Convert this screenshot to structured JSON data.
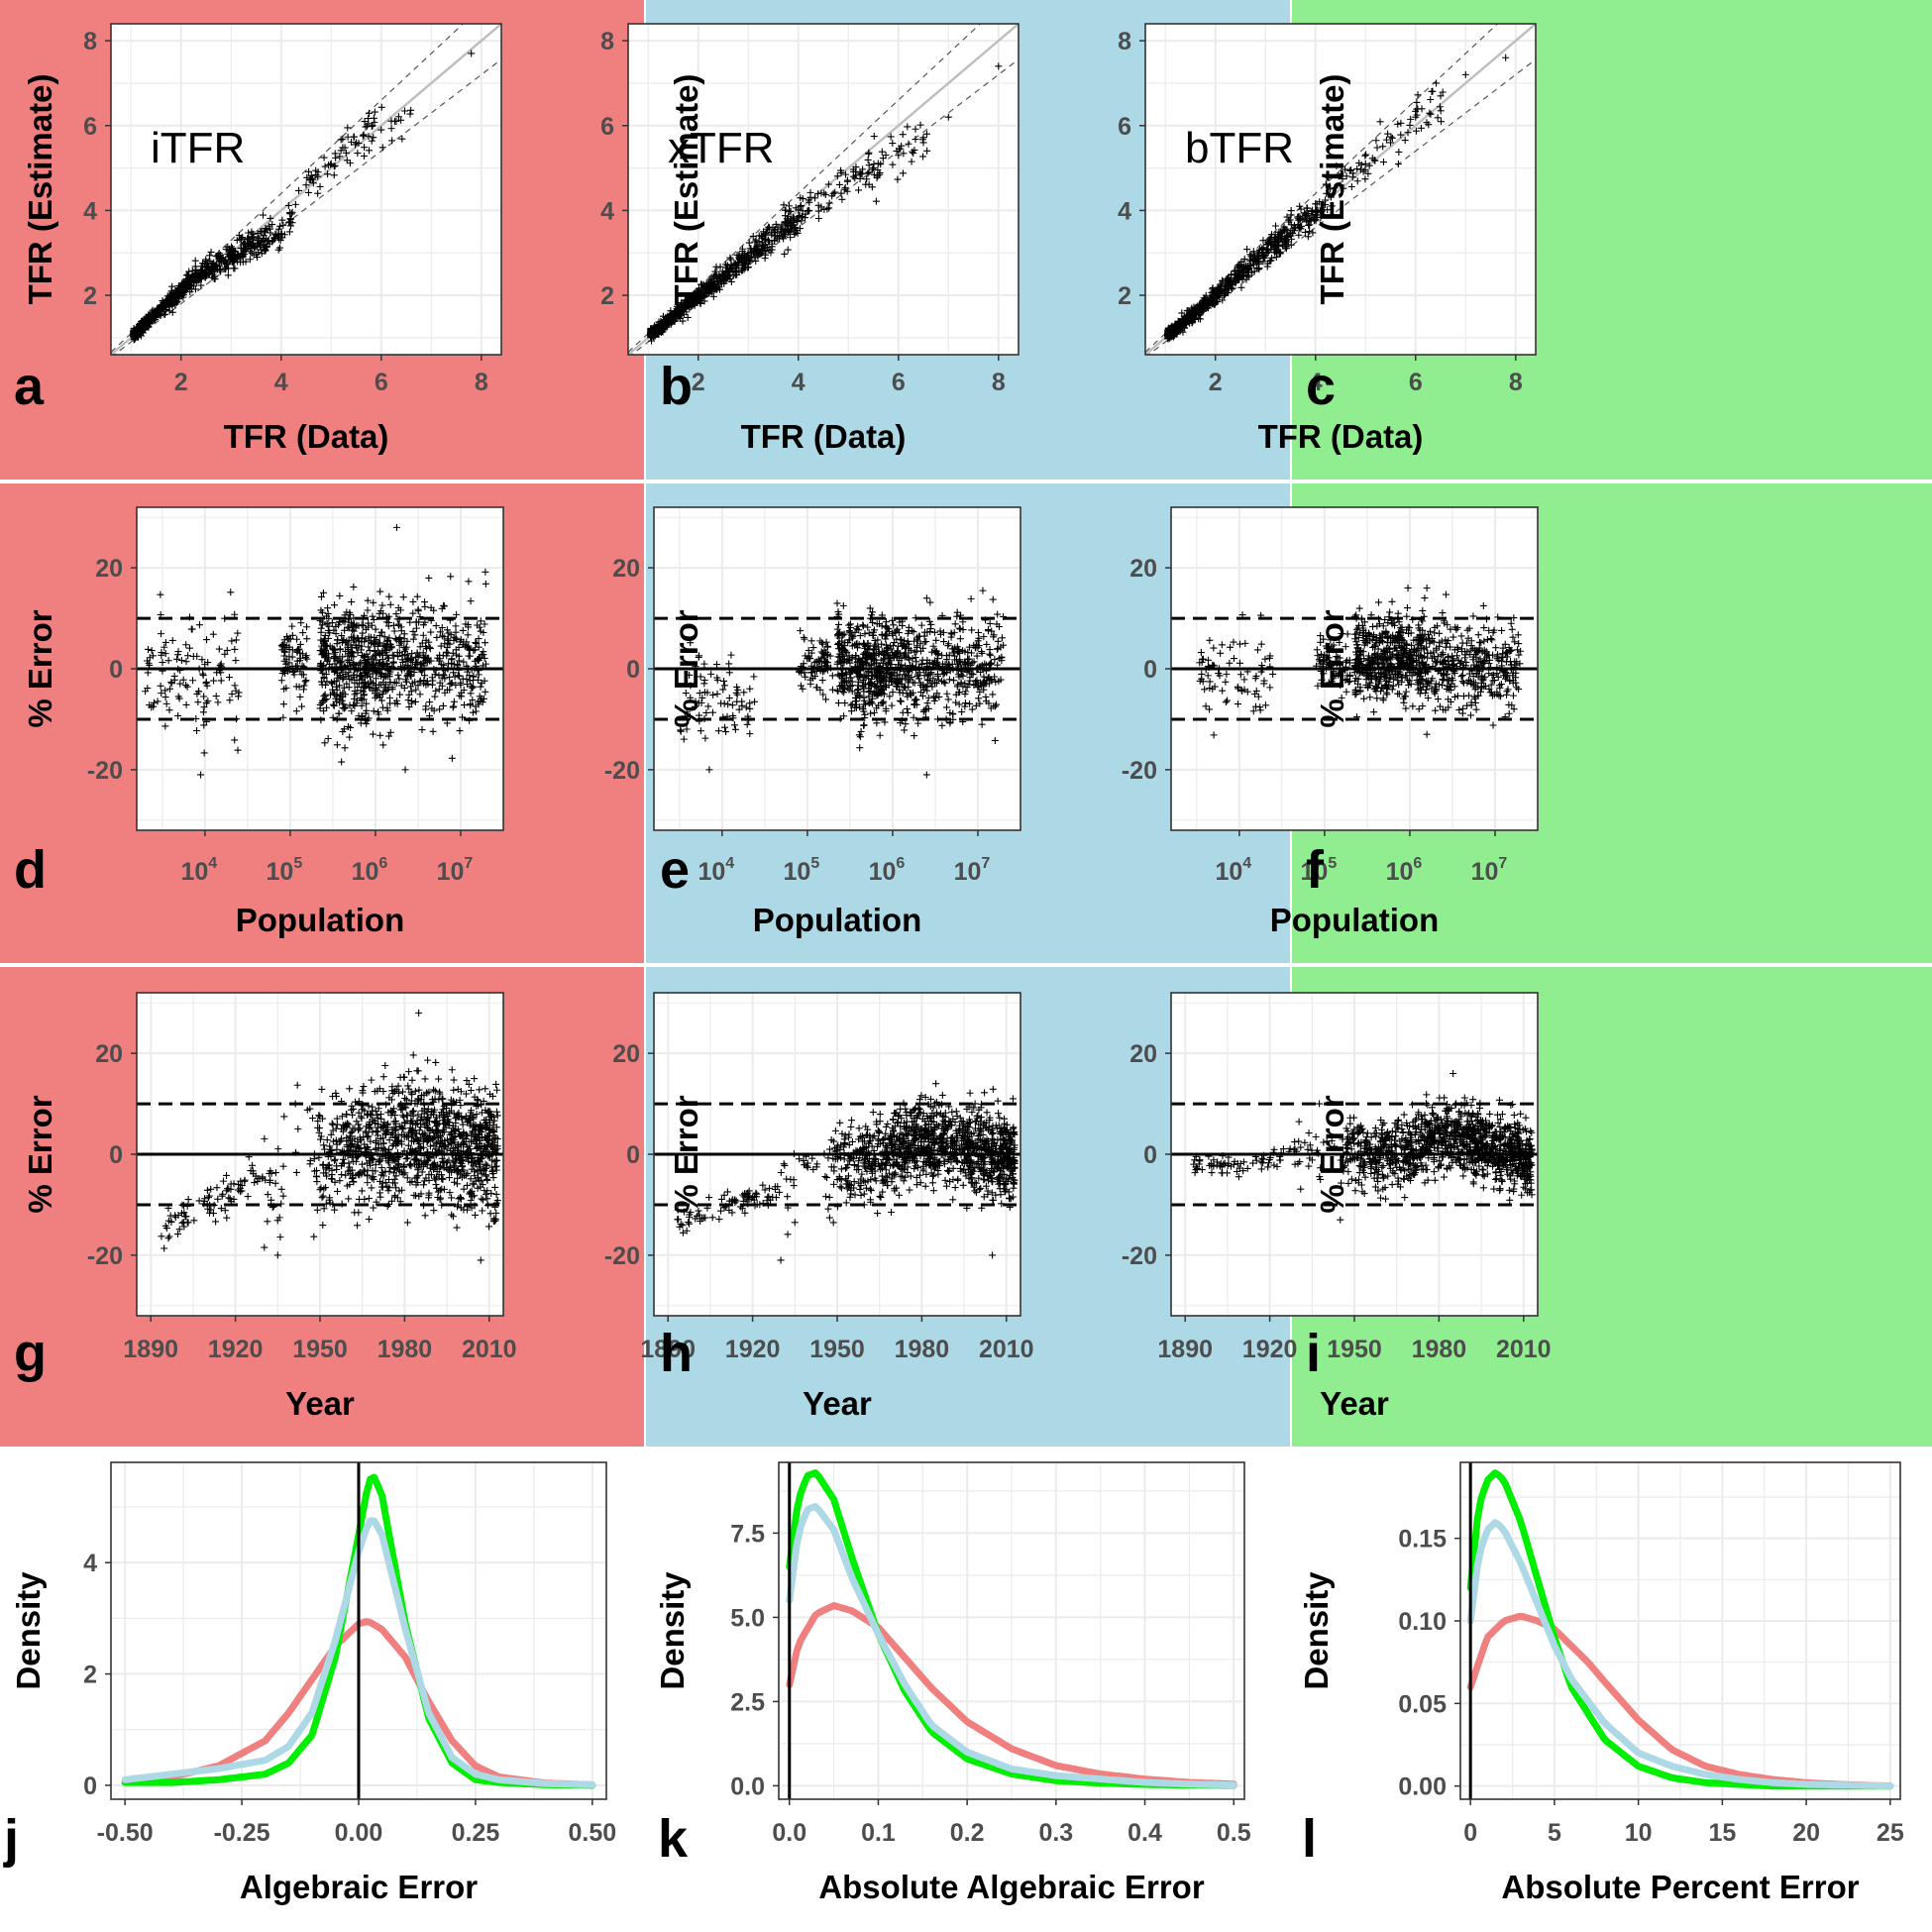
{
  "colors": {
    "iTFR": "#f08080",
    "xTFR": "#add8e6",
    "bTFR": "#90ee90",
    "green_line": "#00ee00",
    "grid": "#ebebeb",
    "points": "#000000"
  },
  "row1": {
    "xlabel": "TFR (Data)",
    "ylabel": "TFR (Estimate)",
    "xticks": [
      "2",
      "4",
      "6",
      "8"
    ],
    "yticks": [
      "2",
      "4",
      "6",
      "8"
    ],
    "panels": [
      {
        "tag": "a",
        "method": "iTFR"
      },
      {
        "tag": "b",
        "method": "xTFR"
      },
      {
        "tag": "c",
        "method": "bTFR"
      }
    ]
  },
  "row2": {
    "xlabel": "Population",
    "ylabel": "% Error",
    "xtick_base": "10",
    "xtick_exponents": [
      "4",
      "5",
      "6",
      "7"
    ],
    "yticks": [
      "-20",
      "0",
      "20"
    ],
    "panels": [
      {
        "tag": "d"
      },
      {
        "tag": "e"
      },
      {
        "tag": "f"
      }
    ]
  },
  "row3": {
    "xlabel": "Year",
    "ylabel": "% Error",
    "xticks": [
      "1890",
      "1920",
      "1950",
      "1980",
      "2010"
    ],
    "yticks": [
      "-20",
      "0",
      "20"
    ],
    "panels": [
      {
        "tag": "g"
      },
      {
        "tag": "h"
      },
      {
        "tag": "i"
      }
    ]
  },
  "row4": {
    "ylabel": "Density",
    "panels": [
      {
        "tag": "j",
        "xlabel": "Algebraic Error",
        "xticks": [
          "-0.50",
          "-0.25",
          "0.00",
          "0.25",
          "0.50"
        ],
        "yticks": [
          "0",
          "2",
          "4"
        ]
      },
      {
        "tag": "k",
        "xlabel": "Absolute Algebraic Error",
        "xticks": [
          "0.0",
          "0.1",
          "0.2",
          "0.3",
          "0.4",
          "0.5"
        ],
        "yticks": [
          "0.0",
          "2.5",
          "5.0",
          "7.5"
        ]
      },
      {
        "tag": "l",
        "xlabel": "Absolute Percent Error",
        "xticks": [
          "0",
          "5",
          "10",
          "15",
          "20",
          "25"
        ],
        "yticks": [
          "0.00",
          "0.05",
          "0.10",
          "0.15"
        ]
      }
    ]
  },
  "chart_data": [
    {
      "type": "scatter",
      "panel": "a",
      "method": "iTFR",
      "xlabel": "TFR (Data)",
      "ylabel": "TFR (Estimate)",
      "xlim": [
        0.6,
        8.4
      ],
      "ylim": [
        0.6,
        8.4
      ],
      "reference_lines": [
        "y = x",
        "y = 1.1x",
        "y = 0.9x"
      ],
      "points": [
        [
          1.1,
          1.1
        ],
        [
          1.3,
          1.35
        ],
        [
          1.5,
          1.55
        ],
        [
          1.7,
          1.8
        ],
        [
          1.9,
          2.0
        ],
        [
          2.1,
          2.25
        ],
        [
          2.3,
          2.45
        ],
        [
          2.5,
          2.55
        ],
        [
          2.7,
          2.7
        ],
        [
          3.0,
          2.9
        ],
        [
          3.3,
          3.1
        ],
        [
          3.6,
          3.25
        ],
        [
          4.0,
          3.45
        ],
        [
          4.5,
          4.6
        ],
        [
          5.0,
          5.1
        ],
        [
          5.5,
          5.6
        ],
        [
          6.0,
          5.9
        ],
        [
          6.3,
          6.1
        ],
        [
          7.8,
          7.7
        ]
      ]
    },
    {
      "type": "scatter",
      "panel": "b",
      "method": "xTFR",
      "xlabel": "TFR (Data)",
      "ylabel": "TFR (Estimate)",
      "xlim": [
        0.6,
        8.4
      ],
      "ylim": [
        0.6,
        8.4
      ],
      "reference_lines": [
        "y = x",
        "y = 1.1x",
        "y = 0.9x"
      ],
      "points": [
        [
          1.1,
          1.1
        ],
        [
          1.3,
          1.3
        ],
        [
          1.5,
          1.5
        ],
        [
          1.7,
          1.7
        ],
        [
          2.0,
          2.0
        ],
        [
          2.3,
          2.25
        ],
        [
          2.6,
          2.55
        ],
        [
          3.0,
          2.9
        ],
        [
          3.4,
          3.3
        ],
        [
          3.8,
          3.65
        ],
        [
          4.2,
          4.0
        ],
        [
          4.7,
          4.4
        ],
        [
          5.1,
          4.8
        ],
        [
          5.5,
          5.0
        ],
        [
          6.0,
          5.3
        ],
        [
          6.5,
          5.6
        ],
        [
          7.0,
          6.2
        ],
        [
          8.0,
          7.4
        ]
      ]
    },
    {
      "type": "scatter",
      "panel": "c",
      "method": "bTFR",
      "xlabel": "TFR (Data)",
      "ylabel": "TFR (Estimate)",
      "xlim": [
        0.6,
        8.4
      ],
      "ylim": [
        0.6,
        8.4
      ],
      "reference_lines": [
        "y = x",
        "y = 1.1x",
        "y = 0.9x"
      ],
      "points": [
        [
          1.1,
          1.1
        ],
        [
          1.3,
          1.3
        ],
        [
          1.5,
          1.5
        ],
        [
          1.8,
          1.8
        ],
        [
          2.1,
          2.1
        ],
        [
          2.4,
          2.4
        ],
        [
          2.8,
          2.8
        ],
        [
          3.2,
          3.2
        ],
        [
          3.6,
          3.6
        ],
        [
          4.0,
          4.0
        ],
        [
          4.5,
          4.6
        ],
        [
          5.0,
          5.1
        ],
        [
          5.5,
          5.6
        ],
        [
          6.0,
          6.2
        ],
        [
          6.5,
          6.7
        ],
        [
          7.0,
          7.2
        ],
        [
          7.8,
          7.6
        ]
      ]
    },
    {
      "type": "scatter",
      "panel": "d",
      "method": "iTFR",
      "xlabel": "Population",
      "ylabel": "% Error",
      "xscale": "log10",
      "xlim_log10": [
        3.2,
        7.5
      ],
      "ylim": [
        -32,
        32
      ],
      "reference_lines": [
        "y = 0",
        "y = 10",
        "y = -10"
      ],
      "clusters": [
        {
          "log10_pop": [
            3.3,
            4.4
          ],
          "error_mean": -2,
          "error_sd": 6,
          "n": 60
        },
        {
          "log10_pop": [
            4.9,
            5.2
          ],
          "error_mean": 1,
          "error_sd": 4,
          "n": 40
        },
        {
          "log10_pop": [
            5.35,
            6.2
          ],
          "error_mean": 1,
          "error_sd": 6,
          "n": 260
        },
        {
          "log10_pop": [
            6.2,
            7.3
          ],
          "error_mean": 1,
          "error_sd": 6,
          "n": 180
        }
      ],
      "extremes": [
        [
          6.25,
          28
        ],
        [
          3.95,
          -21
        ],
        [
          6.35,
          -20
        ]
      ]
    },
    {
      "type": "scatter",
      "panel": "e",
      "method": "xTFR",
      "xlabel": "Population",
      "ylabel": "% Error",
      "xscale": "log10",
      "xlim_log10": [
        3.2,
        7.5
      ],
      "ylim": [
        -32,
        32
      ],
      "reference_lines": [
        "y = 0",
        "y = 10",
        "y = -10"
      ],
      "clusters": [
        {
          "log10_pop": [
            3.5,
            4.4
          ],
          "error_mean": -6,
          "error_sd": 5,
          "n": 40
        },
        {
          "log10_pop": [
            4.9,
            5.3
          ],
          "error_mean": 1,
          "error_sd": 3,
          "n": 40
        },
        {
          "log10_pop": [
            5.35,
            6.2
          ],
          "error_mean": 0,
          "error_sd": 5,
          "n": 260
        },
        {
          "log10_pop": [
            6.2,
            7.3
          ],
          "error_mean": 0,
          "error_sd": 5,
          "n": 180
        }
      ],
      "extremes": [
        [
          6.4,
          14
        ],
        [
          3.85,
          -20
        ],
        [
          6.4,
          -21
        ]
      ]
    },
    {
      "type": "scatter",
      "panel": "f",
      "method": "bTFR",
      "xlabel": "Population",
      "ylabel": "% Error",
      "xscale": "log10",
      "xlim_log10": [
        3.2,
        7.5
      ],
      "ylim": [
        -32,
        32
      ],
      "reference_lines": [
        "y = 0",
        "y = 10",
        "y = -10"
      ],
      "clusters": [
        {
          "log10_pop": [
            3.5,
            4.4
          ],
          "error_mean": -1,
          "error_sd": 4,
          "n": 40
        },
        {
          "log10_pop": [
            4.9,
            5.3
          ],
          "error_mean": 1,
          "error_sd": 3,
          "n": 40
        },
        {
          "log10_pop": [
            5.35,
            6.2
          ],
          "error_mean": 2,
          "error_sd": 4,
          "n": 260
        },
        {
          "log10_pop": [
            6.2,
            7.3
          ],
          "error_mean": 1,
          "error_sd": 4,
          "n": 180
        }
      ],
      "extremes": [
        [
          6.2,
          16
        ],
        [
          6.2,
          -13
        ]
      ]
    },
    {
      "type": "scatter",
      "panel": "g",
      "method": "iTFR",
      "xlabel": "Year",
      "ylabel": "% Error",
      "xlim": [
        1885,
        2015
      ],
      "ylim": [
        -32,
        32
      ],
      "reference_lines": [
        "y = 0",
        "y = 10",
        "y = -10"
      ],
      "trend": [
        [
          1895,
          -15
        ],
        [
          1910,
          -10
        ],
        [
          1925,
          -6
        ],
        [
          1940,
          -3
        ],
        [
          1955,
          0
        ],
        [
          1970,
          2
        ],
        [
          1980,
          4
        ],
        [
          1990,
          3
        ],
        [
          2000,
          1
        ],
        [
          2013,
          0
        ]
      ],
      "error_sd": 6,
      "extremes": [
        [
          1985,
          28
        ],
        [
          2007,
          -21
        ],
        [
          1935,
          -20
        ]
      ]
    },
    {
      "type": "scatter",
      "panel": "h",
      "method": "xTFR",
      "xlabel": "Year",
      "ylabel": "% Error",
      "xlim": [
        1885,
        2015
      ],
      "ylim": [
        -32,
        32
      ],
      "reference_lines": [
        "y = 0",
        "y = 10",
        "y = -10"
      ],
      "trend": [
        [
          1895,
          -14
        ],
        [
          1910,
          -10
        ],
        [
          1925,
          -8
        ],
        [
          1940,
          -5
        ],
        [
          1955,
          -2
        ],
        [
          1970,
          1
        ],
        [
          1980,
          3
        ],
        [
          1990,
          2
        ],
        [
          2000,
          1
        ],
        [
          2013,
          -1
        ]
      ],
      "error_sd": 4,
      "extremes": [
        [
          1985,
          14
        ],
        [
          2005,
          -20
        ],
        [
          1930,
          -21
        ]
      ]
    },
    {
      "type": "scatter",
      "panel": "i",
      "method": "bTFR",
      "xlabel": "Year",
      "ylabel": "% Error",
      "xlim": [
        1885,
        2015
      ],
      "ylim": [
        -32,
        32
      ],
      "reference_lines": [
        "y = 0",
        "y = 10",
        "y = -10"
      ],
      "trend": [
        [
          1895,
          -2
        ],
        [
          1910,
          -3
        ],
        [
          1925,
          0
        ],
        [
          1940,
          0
        ],
        [
          1955,
          0
        ],
        [
          1970,
          1
        ],
        [
          1980,
          4
        ],
        [
          1990,
          3
        ],
        [
          2000,
          1
        ],
        [
          2013,
          -1
        ]
      ],
      "error_sd": 3.5,
      "extremes": [
        [
          1985,
          16
        ],
        [
          1945,
          -13
        ]
      ]
    },
    {
      "type": "line",
      "panel": "j",
      "xlabel": "Algebraic Error",
      "ylabel": "Density",
      "xlim": [
        -0.53,
        0.53
      ],
      "ylim": [
        -0.25,
        5.8
      ],
      "vline": 0,
      "series": [
        {
          "name": "iTFR",
          "color": "#f08080",
          "x": [
            -0.5,
            -0.4,
            -0.3,
            -0.2,
            -0.15,
            -0.1,
            -0.05,
            0.0,
            0.02,
            0.05,
            0.1,
            0.15,
            0.2,
            0.25,
            0.3,
            0.4,
            0.5
          ],
          "y": [
            0.05,
            0.15,
            0.35,
            0.8,
            1.3,
            1.9,
            2.5,
            2.9,
            2.95,
            2.8,
            2.3,
            1.5,
            0.8,
            0.35,
            0.15,
            0.04,
            0.01
          ]
        },
        {
          "name": "xTFR",
          "color": "#add8e6",
          "x": [
            -0.5,
            -0.4,
            -0.3,
            -0.2,
            -0.15,
            -0.1,
            -0.05,
            0.0,
            0.02,
            0.03,
            0.05,
            0.1,
            0.15,
            0.2,
            0.25,
            0.3,
            0.4,
            0.5
          ],
          "y": [
            0.1,
            0.2,
            0.3,
            0.45,
            0.7,
            1.3,
            2.6,
            4.2,
            4.7,
            4.8,
            4.5,
            2.8,
            1.3,
            0.5,
            0.2,
            0.1,
            0.03,
            0.01
          ]
        },
        {
          "name": "bTFR",
          "color": "#00ee00",
          "x": [
            -0.5,
            -0.4,
            -0.3,
            -0.2,
            -0.15,
            -0.1,
            -0.05,
            0.0,
            0.02,
            0.03,
            0.05,
            0.1,
            0.15,
            0.2,
            0.25,
            0.3,
            0.4,
            0.5
          ],
          "y": [
            0.05,
            0.05,
            0.1,
            0.2,
            0.4,
            0.9,
            2.3,
            4.5,
            5.4,
            5.6,
            5.2,
            2.9,
            1.2,
            0.4,
            0.1,
            0.05,
            0.01,
            0.0
          ]
        }
      ]
    },
    {
      "type": "line",
      "panel": "k",
      "xlabel": "Absolute Algebraic Error",
      "ylabel": "Density",
      "xlim": [
        -0.012,
        0.512
      ],
      "ylim": [
        -0.4,
        9.6
      ],
      "vline": 0,
      "series": [
        {
          "name": "iTFR",
          "color": "#f08080",
          "x": [
            0.0,
            0.01,
            0.03,
            0.05,
            0.07,
            0.1,
            0.13,
            0.16,
            0.2,
            0.25,
            0.3,
            0.35,
            0.4,
            0.45,
            0.5
          ],
          "y": [
            3.0,
            4.2,
            5.1,
            5.35,
            5.2,
            4.7,
            3.8,
            2.9,
            1.9,
            1.1,
            0.6,
            0.35,
            0.2,
            0.1,
            0.05
          ]
        },
        {
          "name": "xTFR",
          "color": "#add8e6",
          "x": [
            0.0,
            0.01,
            0.02,
            0.03,
            0.05,
            0.07,
            0.1,
            0.13,
            0.16,
            0.2,
            0.25,
            0.3,
            0.35,
            0.4,
            0.45,
            0.5
          ],
          "y": [
            5.5,
            7.5,
            8.2,
            8.3,
            7.6,
            6.2,
            4.5,
            3.0,
            1.8,
            1.0,
            0.5,
            0.3,
            0.2,
            0.1,
            0.05,
            0.02
          ]
        },
        {
          "name": "bTFR",
          "color": "#00ee00",
          "x": [
            0.0,
            0.01,
            0.02,
            0.03,
            0.05,
            0.07,
            0.1,
            0.13,
            0.16,
            0.2,
            0.25,
            0.3,
            0.35,
            0.4,
            0.45,
            0.5
          ],
          "y": [
            6.5,
            8.5,
            9.2,
            9.3,
            8.5,
            6.8,
            4.5,
            2.8,
            1.6,
            0.8,
            0.35,
            0.15,
            0.08,
            0.04,
            0.02,
            0.01
          ]
        }
      ]
    },
    {
      "type": "line",
      "panel": "l",
      "xlabel": "Absolute Percent Error",
      "ylabel": "Density",
      "xlim": [
        -0.6,
        25.6
      ],
      "ylim": [
        -0.008,
        0.196
      ],
      "vline": 0,
      "series": [
        {
          "name": "iTFR",
          "color": "#f08080",
          "x": [
            0,
            1,
            2,
            3,
            4,
            5,
            6,
            7,
            8,
            10,
            12,
            14,
            16,
            18,
            20,
            22,
            25
          ],
          "y": [
            0.06,
            0.09,
            0.1,
            0.103,
            0.1,
            0.095,
            0.085,
            0.075,
            0.063,
            0.04,
            0.022,
            0.012,
            0.007,
            0.004,
            0.002,
            0.001,
            0.0
          ]
        },
        {
          "name": "xTFR",
          "color": "#add8e6",
          "x": [
            0,
            0.5,
            1,
            1.5,
            2,
            3,
            4,
            5,
            6,
            8,
            10,
            12,
            14,
            16,
            18,
            20,
            25
          ],
          "y": [
            0.1,
            0.14,
            0.155,
            0.16,
            0.155,
            0.135,
            0.11,
            0.085,
            0.065,
            0.038,
            0.02,
            0.012,
            0.007,
            0.004,
            0.002,
            0.001,
            0.0
          ]
        },
        {
          "name": "bTFR",
          "color": "#00ee00",
          "x": [
            0,
            0.5,
            1,
            1.5,
            2,
            3,
            4,
            5,
            6,
            8,
            10,
            12,
            14,
            16,
            18,
            20,
            25
          ],
          "y": [
            0.12,
            0.17,
            0.185,
            0.19,
            0.185,
            0.16,
            0.125,
            0.09,
            0.06,
            0.028,
            0.012,
            0.005,
            0.002,
            0.001,
            0.0,
            0.0,
            0.0
          ]
        }
      ]
    }
  ]
}
